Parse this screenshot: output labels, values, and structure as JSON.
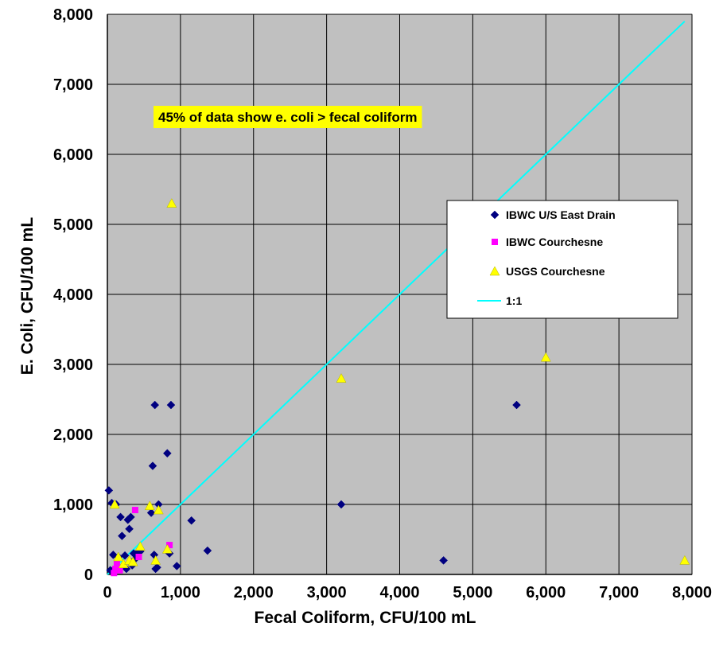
{
  "chart_data": {
    "type": "scatter",
    "title": "",
    "xlabel": "Fecal Coliform, CFU/100 mL",
    "ylabel": "E. Coli, CFU/100 mL",
    "xlim": [
      0,
      8000
    ],
    "ylim": [
      0,
      8000
    ],
    "x_ticks": [
      0,
      1000,
      2000,
      3000,
      4000,
      5000,
      6000,
      7000,
      8000
    ],
    "y_ticks": [
      0,
      1000,
      2000,
      3000,
      4000,
      5000,
      6000,
      7000,
      8000
    ],
    "x_tick_labels": [
      "0",
      "1,000",
      "2,000",
      "3,000",
      "4,000",
      "5,000",
      "6,000",
      "7,000",
      "8,000"
    ],
    "y_tick_labels": [
      "0",
      "1,000",
      "2,000",
      "3,000",
      "4,000",
      "5,000",
      "6,000",
      "7,000",
      "8,000"
    ],
    "grid": true,
    "plot_background": "#c0c0c0",
    "legend_position": "right",
    "annotation": {
      "text": "45% of data show e. coli > fecal coliform",
      "x": 500,
      "y": 6600,
      "background": "#ffff00"
    },
    "series": [
      {
        "name": "IBWC U/S East Drain",
        "marker": "diamond",
        "color": "#000080",
        "points": [
          [
            20,
            1200
          ],
          [
            40,
            60
          ],
          [
            60,
            1020
          ],
          [
            80,
            280
          ],
          [
            100,
            80
          ],
          [
            120,
            1000
          ],
          [
            150,
            250
          ],
          [
            180,
            820
          ],
          [
            200,
            550
          ],
          [
            220,
            120
          ],
          [
            240,
            270
          ],
          [
            260,
            80
          ],
          [
            280,
            780
          ],
          [
            300,
            650
          ],
          [
            320,
            820
          ],
          [
            340,
            130
          ],
          [
            360,
            300
          ],
          [
            380,
            220
          ],
          [
            400,
            300
          ],
          [
            420,
            280
          ],
          [
            450,
            330
          ],
          [
            600,
            880
          ],
          [
            620,
            1550
          ],
          [
            640,
            280
          ],
          [
            650,
            2420
          ],
          [
            660,
            80
          ],
          [
            680,
            100
          ],
          [
            700,
            1000
          ],
          [
            820,
            1730
          ],
          [
            850,
            300
          ],
          [
            870,
            2420
          ],
          [
            950,
            120
          ],
          [
            1150,
            770
          ],
          [
            1370,
            340
          ],
          [
            3200,
            1000
          ],
          [
            4600,
            200
          ],
          [
            5600,
            2420
          ]
        ]
      },
      {
        "name": "IBWC Courchesne",
        "marker": "square",
        "color": "#ff00ff",
        "points": [
          [
            90,
            20
          ],
          [
            110,
            80
          ],
          [
            130,
            150
          ],
          [
            170,
            60
          ],
          [
            380,
            920
          ],
          [
            430,
            250
          ],
          [
            850,
            420
          ]
        ]
      },
      {
        "name": "USGS Courchesne",
        "marker": "triangle",
        "color": "#ffff00",
        "points": [
          [
            100,
            1000
          ],
          [
            150,
            250
          ],
          [
            220,
            150
          ],
          [
            300,
            200
          ],
          [
            350,
            180
          ],
          [
            450,
            400
          ],
          [
            580,
            980
          ],
          [
            660,
            200
          ],
          [
            700,
            920
          ],
          [
            820,
            360
          ],
          [
            880,
            5300
          ],
          [
            3200,
            2800
          ],
          [
            6000,
            3100
          ],
          [
            7900,
            200
          ]
        ]
      },
      {
        "name": "1:1",
        "type": "line",
        "color": "#00ffff",
        "x": [
          0,
          7900
        ],
        "y": [
          0,
          7900
        ]
      }
    ]
  }
}
